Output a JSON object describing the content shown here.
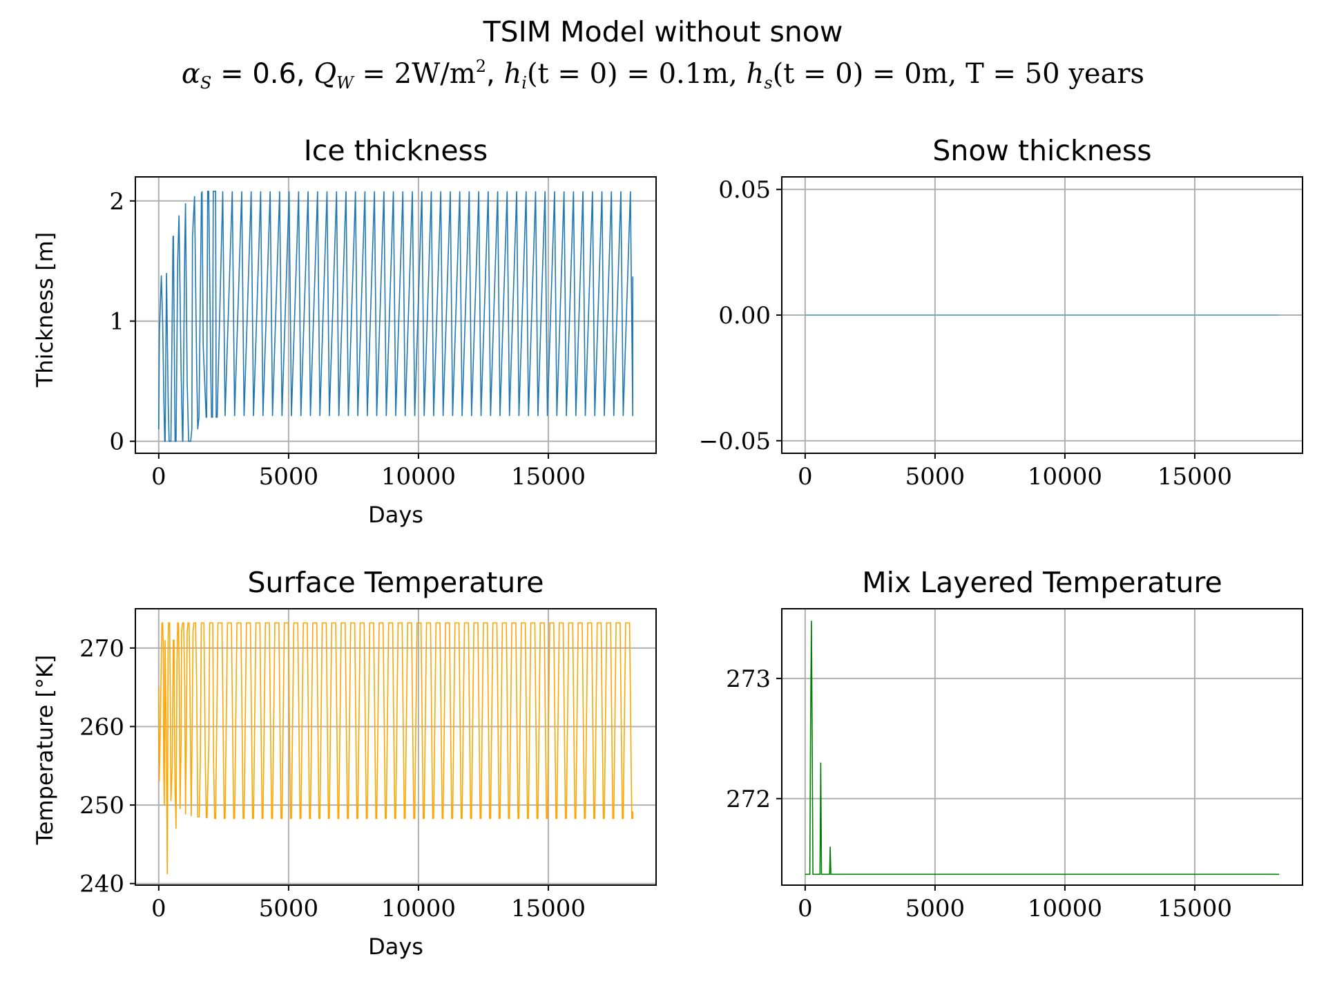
{
  "figure": {
    "title": "TSIM Model without snow",
    "subtitle_parts": {
      "alpha_symbol": "α",
      "alpha_sub": "S",
      "alpha_rest": " = 0.6, ",
      "q_symbol": "Q",
      "q_sub": "W",
      "q_rest": " = 2W/m",
      "q_sup": "2",
      "q_end": ", ",
      "hi_symbol": "h",
      "hi_sub": "i",
      "hi_rest": "(t = 0) = 0.1m, ",
      "hs_symbol": "h",
      "hs_sub": "s",
      "hs_rest": "(t = 0) = 0m, T = 50 years"
    }
  },
  "chart_data": [
    {
      "id": "ice",
      "type": "line",
      "title": "Ice thickness",
      "xlabel": "Days",
      "ylabel": "Thickness [m]",
      "xlim": [
        -900,
        19150
      ],
      "ylim": [
        -0.1,
        2.2
      ],
      "xticks": [
        0,
        5000,
        10000,
        15000
      ],
      "xtick_labels": [
        "0",
        "5000",
        "10000",
        "15000"
      ],
      "yticks": [
        0,
        1,
        2
      ],
      "ytick_labels": [
        "0",
        "1",
        "2"
      ],
      "grid": true,
      "color": "#1f77b4",
      "series": [
        {
          "x": [
            0,
            25,
            100,
            150,
            200,
            230,
            250,
            265,
            300,
            365,
            400,
            470,
            550,
            565,
            600,
            630,
            665,
            730,
            780,
            860,
            915,
            930,
            1000,
            1030,
            1095,
            1150,
            1230,
            1275,
            1300,
            1380,
            1460,
            1500,
            1550,
            1645,
            1670,
            1710,
            1825,
            1845,
            1885,
            1925,
            2010,
            2030,
            2070,
            2100,
            2190,
            2210,
            2250
          ],
          "y": [
            0.1,
            0.9,
            1.38,
            1.0,
            0.3,
            0.0,
            0.0,
            0.5,
            1.4,
            0.3,
            0.0,
            0.0,
            1.7,
            1.71,
            0.8,
            0.0,
            0.0,
            1.5,
            1.88,
            0.6,
            0.0,
            0.0,
            1.6,
            1.98,
            0.5,
            0.0,
            0.0,
            0.1,
            1.7,
            2.04,
            0.6,
            0.1,
            0.2,
            2.06,
            2.08,
            0.8,
            0.2,
            0.2,
            2.08,
            2.08,
            0.5,
            0.2,
            0.2,
            2.08,
            2.08,
            0.2,
            0.2
          ],
          "periodic_from": 2190,
          "periodic_to": 18250,
          "period": 365,
          "cycle": {
            "grow_days": 275,
            "peak": 2.08,
            "trough": 0.21
          },
          "end_value": 1.37
        }
      ]
    },
    {
      "id": "snow",
      "type": "line",
      "title": "Snow thickness",
      "xlabel": "",
      "ylabel": "",
      "xlim": [
        -900,
        19150
      ],
      "ylim": [
        -0.055,
        0.055
      ],
      "xticks": [
        0,
        5000,
        10000,
        15000
      ],
      "xtick_labels": [
        "0",
        "5000",
        "10000",
        "15000"
      ],
      "yticks": [
        -0.05,
        0.0,
        0.05
      ],
      "ytick_labels": [
        "−0.05",
        "0.00",
        "0.05"
      ],
      "grid": true,
      "color": "#5fa9c0",
      "series": [
        {
          "x": [
            0,
            18250
          ],
          "y": [
            0,
            0
          ]
        }
      ]
    },
    {
      "id": "surface",
      "type": "line",
      "title": "Surface Temperature",
      "xlabel": "Days",
      "ylabel": "Temperature [°K]",
      "xlim": [
        -900,
        19150
      ],
      "ylim": [
        239.8,
        275.0
      ],
      "xticks": [
        0,
        5000,
        10000,
        15000
      ],
      "xtick_labels": [
        "0",
        "5000",
        "10000",
        "15000"
      ],
      "yticks": [
        240,
        250,
        260,
        270
      ],
      "ytick_labels": [
        "240",
        "250",
        "260",
        "270"
      ],
      "grid": true,
      "color": "#ffa500",
      "series": [
        {
          "x": [
            0,
            20,
            60,
            120,
            150,
            175,
            190,
            215,
            245,
            265,
            300,
            330,
            345,
            360,
            380,
            420,
            440,
            470,
            520,
            560,
            590,
            600,
            630,
            665,
            700,
            730,
            760,
            790,
            820,
            860,
            880,
            920,
            960,
            1000,
            1030,
            1060,
            1095,
            1125,
            1170,
            1200,
            1250,
            1280,
            1320,
            1350,
            1380,
            1420,
            1460,
            1500,
            1560,
            1600,
            1640,
            1660,
            1700,
            1740,
            1790,
            1830,
            1860,
            1930,
            1960,
            2000,
            2040,
            2080,
            2110,
            2150,
            2190
          ],
          "y": [
            265,
            253,
            260,
            273.2,
            273.2,
            270,
            255,
            250,
            271,
            265,
            255,
            241.2,
            252,
            271,
            273.2,
            273.2,
            265,
            250.5,
            255,
            271,
            271,
            263,
            252,
            247,
            268,
            273.2,
            273.2,
            266,
            249.5,
            258,
            272,
            273.2,
            273.2,
            265,
            248.8,
            258,
            272,
            273.2,
            273.2,
            265,
            248.6,
            258,
            272,
            273.2,
            273.2,
            273.2,
            265,
            248.5,
            248.5,
            255,
            273.2,
            273.2,
            273.2,
            273.2,
            256,
            248.4,
            248.4,
            258,
            273.2,
            273.2,
            273.2,
            273.2,
            256,
            248.3,
            248.3
          ],
          "periodic_from": 2190,
          "periodic_to": 18250,
          "period": 365,
          "cycle": {
            "high": 273.2,
            "low": 248.3
          },
          "end_value": 249.2
        }
      ]
    },
    {
      "id": "mix",
      "type": "line",
      "title": "Mix Layered Temperature",
      "xlabel": "",
      "ylabel": "",
      "xlim": [
        -900,
        19150
      ],
      "ylim": [
        271.28,
        273.58
      ],
      "xticks": [
        0,
        5000,
        10000,
        15000
      ],
      "xtick_labels": [
        "0",
        "5000",
        "10000",
        "15000"
      ],
      "yticks": [
        272,
        273
      ],
      "ytick_labels": [
        "272",
        "273"
      ],
      "grid": true,
      "color": "#008000",
      "series": [
        {
          "x": [
            0,
            150,
            180,
            210,
            240,
            270,
            300,
            320,
            560,
            570,
            600,
            630,
            660,
            690,
            930,
            940,
            965,
            990,
            1010,
            1030,
            18250
          ],
          "y": [
            271.37,
            271.37,
            271.37,
            272.6,
            273.48,
            272.5,
            271.37,
            271.37,
            271.37,
            271.37,
            272.3,
            271.37,
            271.37,
            271.37,
            271.37,
            271.37,
            271.6,
            271.37,
            271.37,
            271.37,
            271.37
          ]
        }
      ]
    }
  ]
}
